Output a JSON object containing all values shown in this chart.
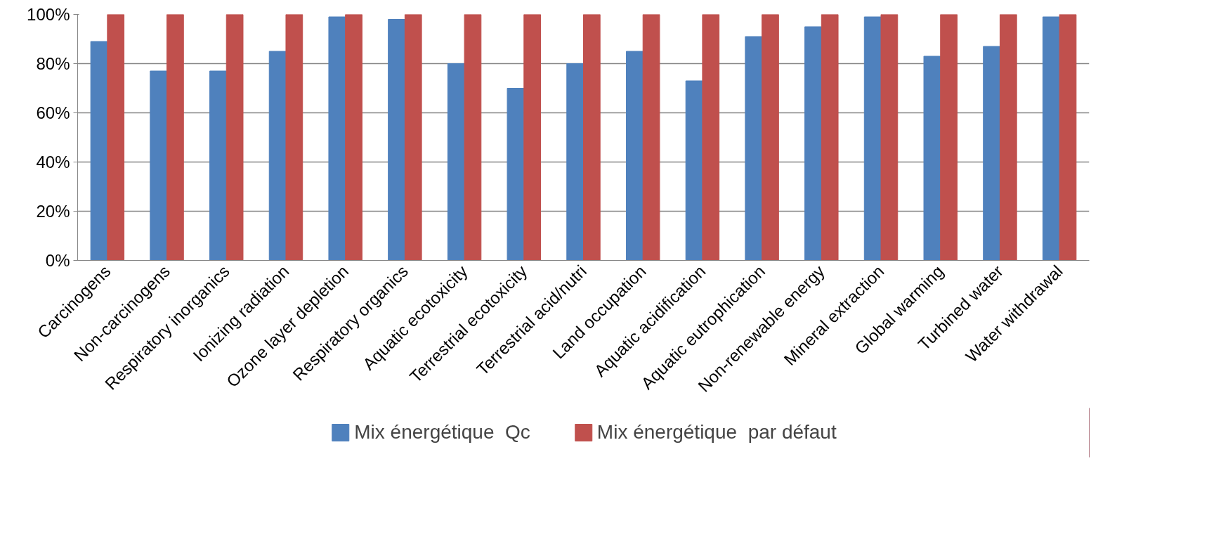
{
  "chart_data": {
    "type": "bar",
    "categories": [
      "Carcinogens",
      "Non-carcinogens",
      "Respiratory inorganics",
      "Ionizing radiation",
      "Ozone layer depletion",
      "Respiratory organics",
      "Aquatic ecotoxicity",
      "Terrestrial ecotoxicity",
      "Terrestrial acid/nutri",
      "Land occupation",
      "Aquatic acidification",
      "Aquatic eutrophication",
      "Non-renewable energy",
      "Mineral extraction",
      "Global warming",
      "Turbined water",
      "Water withdrawal"
    ],
    "series": [
      {
        "name": "Mix énergétique  Qc",
        "color": "#4f81bd",
        "values": [
          89,
          77,
          77,
          85,
          99,
          98,
          80,
          70,
          80,
          85,
          73,
          91,
          95,
          99,
          83,
          87,
          99
        ]
      },
      {
        "name": "Mix énergétique  par défaut",
        "color": "#c0504d",
        "values": [
          100,
          100,
          100,
          100,
          100,
          100,
          100,
          100,
          100,
          100,
          100,
          100,
          100,
          100,
          100,
          100,
          100
        ]
      }
    ],
    "ylim": [
      0,
      100
    ],
    "yticks": [
      {
        "value": 0,
        "label": "0%"
      },
      {
        "value": 20,
        "label": "20%"
      },
      {
        "value": 40,
        "label": "40%"
      },
      {
        "value": 60,
        "label": "60%"
      },
      {
        "value": 80,
        "label": "80%"
      },
      {
        "value": 100,
        "label": "100%"
      }
    ],
    "grid": "y",
    "legend": "bottom"
  }
}
